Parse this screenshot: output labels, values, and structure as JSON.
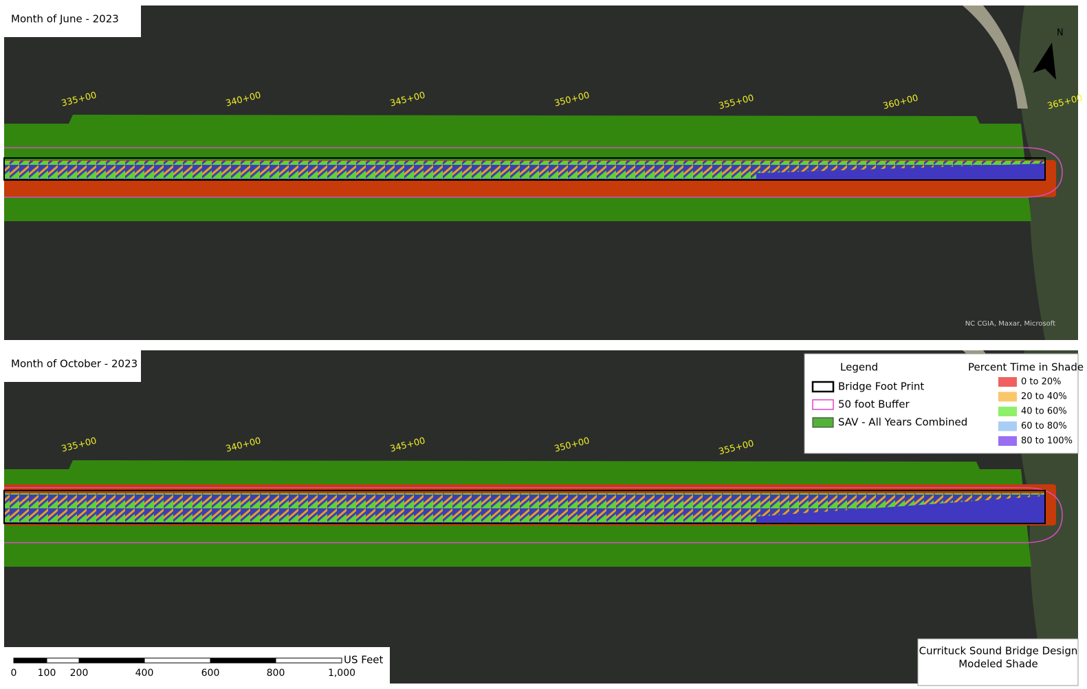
{
  "panels": [
    {
      "title": "Month of June - 2023",
      "stations": [
        "335+00",
        "340+00",
        "345+00",
        "350+00",
        "355+00",
        "360+00",
        "365+00"
      ],
      "attribution": "NC CGIA, Maxar, Microsoft"
    },
    {
      "title": "Month of October - 2023",
      "stations": [
        "335+00",
        "340+00",
        "345+00",
        "350+00",
        "355+00"
      ]
    }
  ],
  "north_arrow": "N",
  "legend": {
    "title": "Legend",
    "items": [
      "Bridge Foot Print",
      "50 foot Buffer",
      "SAV - All Years Combined"
    ],
    "shade_title": "Percent Time in Shade",
    "shade_items": [
      "0 to 20%",
      "20 to 40%",
      "40 to 60%",
      "60 to 80%",
      "80 to 100%"
    ]
  },
  "scale_bar": {
    "unit": "US Feet",
    "ticks": [
      "0",
      "100",
      "200",
      "400",
      "600",
      "800",
      "1,000"
    ]
  },
  "map_title": [
    "Currituck Sound Bridge Design",
    "Modeled Shade"
  ]
}
